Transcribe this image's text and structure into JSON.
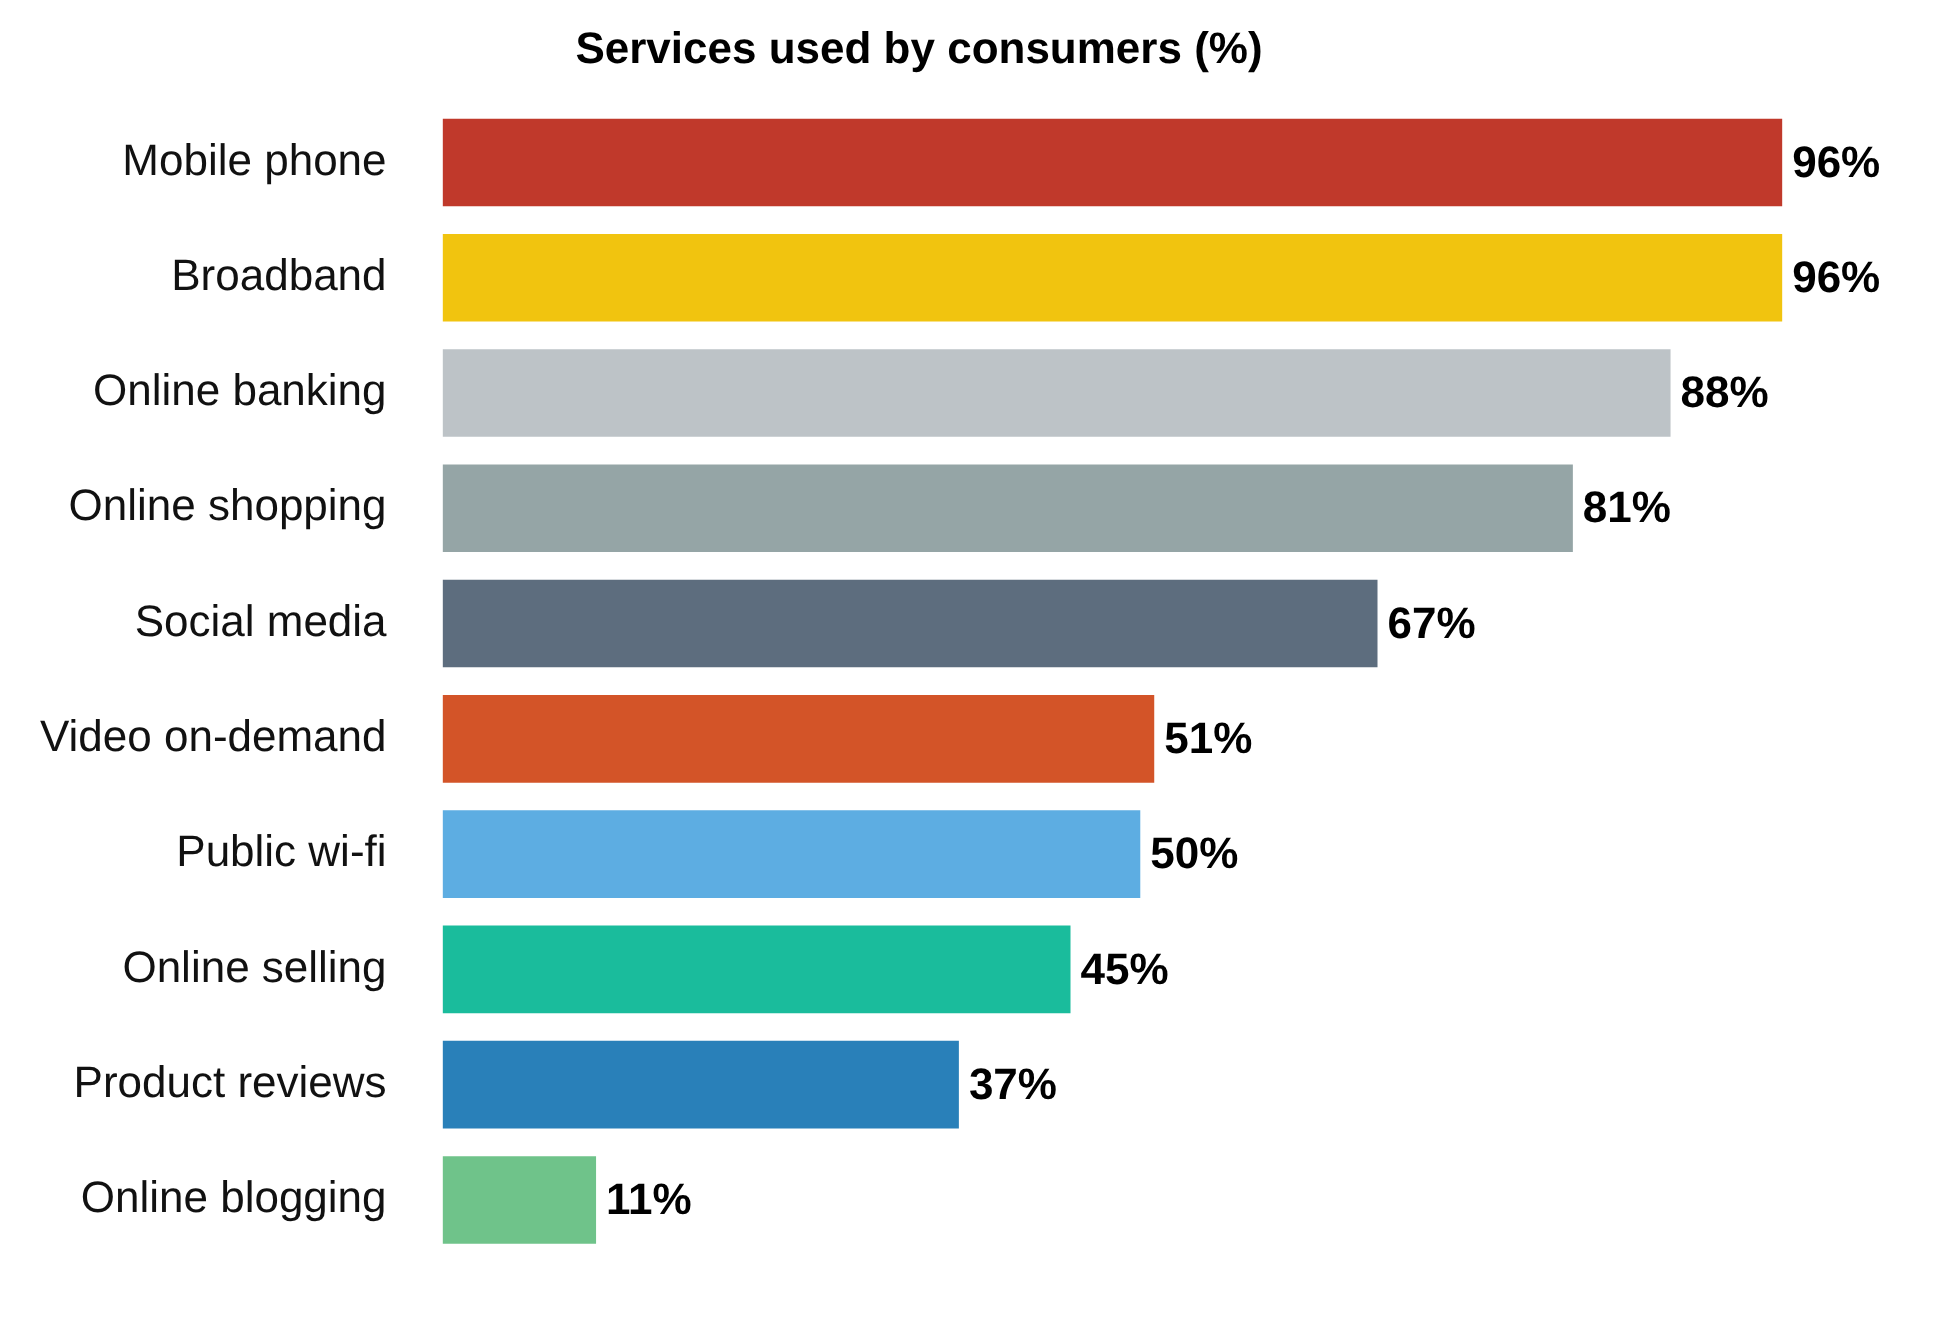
{
  "chart_data": {
    "type": "bar",
    "orientation": "horizontal",
    "title": "Services used by consumers (%)",
    "categories": [
      "Mobile phone",
      "Broadband",
      "Online banking",
      "Online shopping",
      "Social media",
      "Video on-demand",
      "Public wi-fi",
      "Online selling",
      "Product reviews",
      "Online blogging"
    ],
    "values": [
      96,
      96,
      88,
      81,
      67,
      51,
      50,
      45,
      37,
      11
    ],
    "value_labels": [
      "96%",
      "96%",
      "88%",
      "81%",
      "67%",
      "51%",
      "50%",
      "45%",
      "37%",
      "11%"
    ],
    "colors": [
      "#c0392b",
      "#f1c40f",
      "#bdc3c7",
      "#95a5a6",
      "#5d6d7e",
      "#d35428",
      "#5dade2",
      "#1abc9c",
      "#2980b9",
      "#6fc38a"
    ],
    "legend": false
  }
}
